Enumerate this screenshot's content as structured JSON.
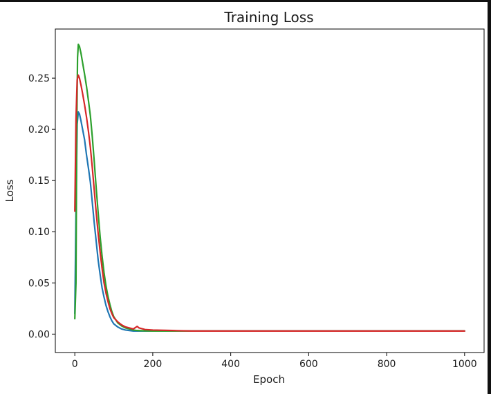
{
  "chart_data": {
    "type": "line",
    "title": "Training Loss",
    "xlabel": "Epoch",
    "ylabel": "Loss",
    "xlim": [
      -50,
      1050
    ],
    "ylim": [
      -0.018,
      0.298
    ],
    "xticks": [
      0,
      200,
      400,
      600,
      800,
      1000
    ],
    "xtick_labels": [
      "0",
      "200",
      "400",
      "600",
      "800",
      "1000"
    ],
    "yticks": [
      0.0,
      0.05,
      0.1,
      0.15,
      0.2,
      0.25
    ],
    "ytick_labels": [
      "0.00",
      "0.05",
      "0.10",
      "0.15",
      "0.20",
      "0.25"
    ],
    "grid": false,
    "legend": "none",
    "series": [
      {
        "color": "#1f77b4",
        "points": [
          [
            0,
            0.02
          ],
          [
            3,
            0.12
          ],
          [
            6,
            0.205
          ],
          [
            9,
            0.217
          ],
          [
            12,
            0.215
          ],
          [
            16,
            0.208
          ],
          [
            20,
            0.2
          ],
          [
            25,
            0.19
          ],
          [
            30,
            0.175
          ],
          [
            35,
            0.162
          ],
          [
            40,
            0.148
          ],
          [
            45,
            0.128
          ],
          [
            50,
            0.108
          ],
          [
            55,
            0.09
          ],
          [
            60,
            0.072
          ],
          [
            65,
            0.058
          ],
          [
            70,
            0.045
          ],
          [
            75,
            0.036
          ],
          [
            80,
            0.028
          ],
          [
            85,
            0.022
          ],
          [
            90,
            0.017
          ],
          [
            95,
            0.013
          ],
          [
            100,
            0.01
          ],
          [
            110,
            0.007
          ],
          [
            120,
            0.005
          ],
          [
            130,
            0.004
          ],
          [
            140,
            0.0035
          ],
          [
            150,
            0.003
          ],
          [
            160,
            0.003
          ],
          [
            180,
            0.003
          ],
          [
            200,
            0.003
          ],
          [
            250,
            0.003
          ],
          [
            300,
            0.003
          ],
          [
            400,
            0.003
          ],
          [
            500,
            0.003
          ],
          [
            600,
            0.003
          ],
          [
            700,
            0.003
          ],
          [
            800,
            0.003
          ],
          [
            900,
            0.003
          ],
          [
            1000,
            0.003
          ]
        ]
      },
      {
        "color": "#2ca02c",
        "points": [
          [
            0,
            0.015
          ],
          [
            3,
            0.05
          ],
          [
            5,
            0.2
          ],
          [
            7,
            0.27
          ],
          [
            9,
            0.283
          ],
          [
            12,
            0.281
          ],
          [
            16,
            0.274
          ],
          [
            20,
            0.265
          ],
          [
            25,
            0.254
          ],
          [
            30,
            0.242
          ],
          [
            35,
            0.228
          ],
          [
            40,
            0.213
          ],
          [
            45,
            0.192
          ],
          [
            50,
            0.168
          ],
          [
            55,
            0.142
          ],
          [
            60,
            0.118
          ],
          [
            65,
            0.095
          ],
          [
            70,
            0.076
          ],
          [
            75,
            0.06
          ],
          [
            80,
            0.047
          ],
          [
            85,
            0.037
          ],
          [
            90,
            0.029
          ],
          [
            95,
            0.022
          ],
          [
            100,
            0.017
          ],
          [
            110,
            0.011
          ],
          [
            120,
            0.008
          ],
          [
            130,
            0.006
          ],
          [
            140,
            0.005
          ],
          [
            150,
            0.004
          ],
          [
            160,
            0.0035
          ],
          [
            180,
            0.0032
          ],
          [
            200,
            0.003
          ],
          [
            250,
            0.003
          ],
          [
            300,
            0.003
          ],
          [
            400,
            0.003
          ],
          [
            500,
            0.003
          ],
          [
            600,
            0.003
          ],
          [
            700,
            0.003
          ],
          [
            800,
            0.003
          ],
          [
            900,
            0.003
          ],
          [
            1000,
            0.003
          ]
        ]
      },
      {
        "color": "#d62728",
        "points": [
          [
            0,
            0.12
          ],
          [
            3,
            0.21
          ],
          [
            6,
            0.248
          ],
          [
            9,
            0.253
          ],
          [
            12,
            0.25
          ],
          [
            16,
            0.243
          ],
          [
            20,
            0.235
          ],
          [
            25,
            0.224
          ],
          [
            30,
            0.212
          ],
          [
            35,
            0.198
          ],
          [
            40,
            0.182
          ],
          [
            45,
            0.162
          ],
          [
            50,
            0.14
          ],
          [
            55,
            0.118
          ],
          [
            60,
            0.098
          ],
          [
            65,
            0.08
          ],
          [
            70,
            0.064
          ],
          [
            75,
            0.05
          ],
          [
            80,
            0.04
          ],
          [
            85,
            0.032
          ],
          [
            90,
            0.025
          ],
          [
            95,
            0.02
          ],
          [
            100,
            0.016
          ],
          [
            110,
            0.012
          ],
          [
            120,
            0.009
          ],
          [
            130,
            0.007
          ],
          [
            140,
            0.006
          ],
          [
            150,
            0.005
          ],
          [
            160,
            0.0075
          ],
          [
            165,
            0.006
          ],
          [
            180,
            0.0045
          ],
          [
            200,
            0.004
          ],
          [
            250,
            0.0035
          ],
          [
            300,
            0.003
          ],
          [
            400,
            0.003
          ],
          [
            500,
            0.003
          ],
          [
            600,
            0.003
          ],
          [
            700,
            0.003
          ],
          [
            800,
            0.003
          ],
          [
            900,
            0.003
          ],
          [
            1000,
            0.003
          ]
        ]
      }
    ]
  }
}
